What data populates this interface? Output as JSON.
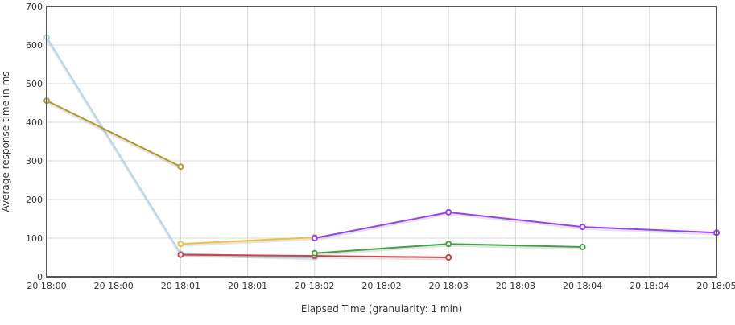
{
  "chart_data": {
    "type": "line",
    "title": "",
    "xlabel": "Elapsed Time (granularity: 1 min)",
    "ylabel": "Average response time in ms",
    "ylim": [
      0,
      700
    ],
    "yticks": [
      0,
      100,
      200,
      300,
      400,
      500,
      600,
      700
    ],
    "xlim": [
      "18:00:00",
      "18:05:00"
    ],
    "xtick_labels": [
      "20 18:00",
      "20 18:00",
      "20 18:01",
      "20 18:01",
      "20 18:02",
      "20 18:02",
      "20 18:03",
      "20 18:03",
      "20 18:04",
      "20 18:04",
      "20 18:05"
    ],
    "grid": true,
    "series": [
      {
        "color": "#b4d7f0",
        "x": [
          "18:00",
          "18:01",
          "18:02"
        ],
        "y": [
          620,
          60,
          50
        ]
      },
      {
        "color": "#b8962e",
        "x": [
          "18:00",
          "18:01"
        ],
        "y": [
          456,
          285
        ]
      },
      {
        "color": "#f0c040",
        "x": [
          "18:01",
          "18:02"
        ],
        "y": [
          85,
          102
        ]
      },
      {
        "color": "#cc4444",
        "x": [
          "18:01",
          "18:02",
          "18:03"
        ],
        "y": [
          57,
          54,
          50
        ]
      },
      {
        "color": "#9b3ff0",
        "x": [
          "18:02",
          "18:03",
          "18:04",
          "18:05"
        ],
        "y": [
          100,
          167,
          129,
          114
        ]
      },
      {
        "color": "#44a044",
        "x": [
          "18:02",
          "18:03",
          "18:04"
        ],
        "y": [
          61,
          85,
          77
        ]
      }
    ]
  }
}
